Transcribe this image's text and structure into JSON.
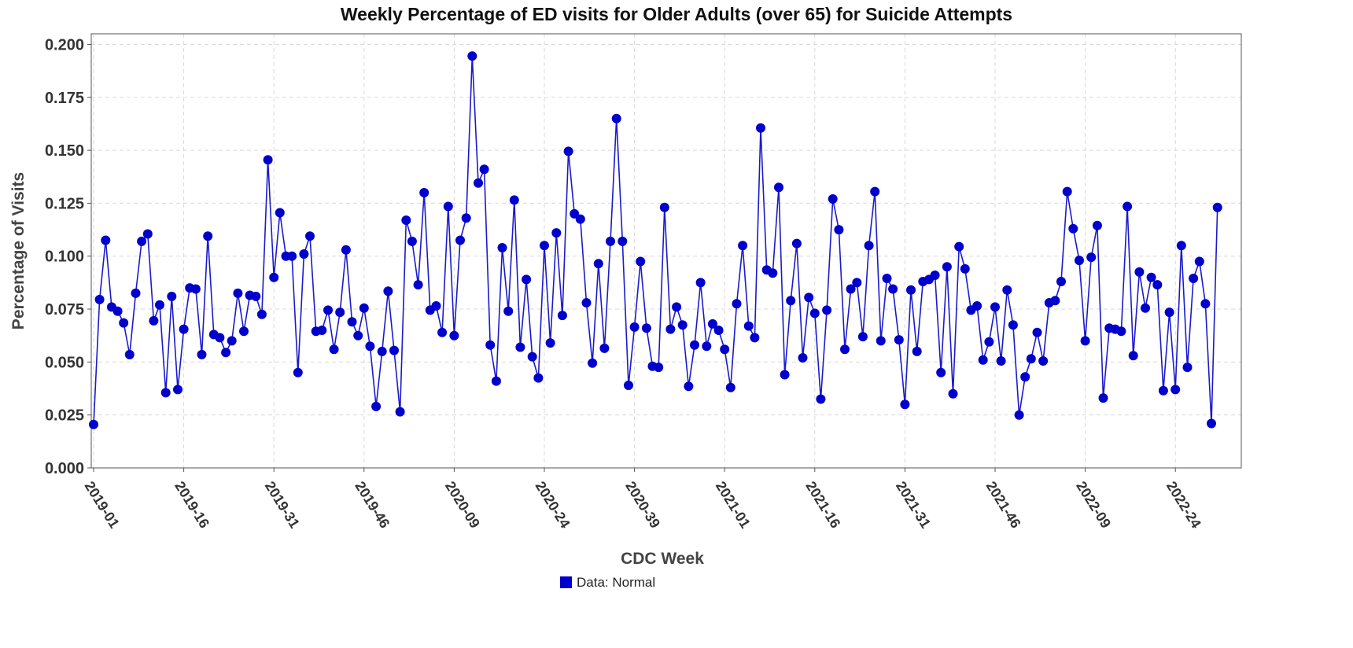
{
  "chart_data": {
    "type": "line",
    "title": "Weekly Percentage of ED visits for Older Adults (over 65) for Suicide Attempts",
    "xlabel": "CDC Week",
    "ylabel": "Percentage of Visits",
    "ylim": [
      0,
      0.205
    ],
    "yticks": [
      "0.000",
      "0.025",
      "0.050",
      "0.075",
      "0.100",
      "0.125",
      "0.150",
      "0.175",
      "0.200"
    ],
    "xtick_labels": [
      "2019-01",
      "2019-16",
      "2019-31",
      "2019-46",
      "2020-09",
      "2020-24",
      "2020-39",
      "2021-01",
      "2021-16",
      "2021-31",
      "2021-46",
      "2022-09",
      "2022-24"
    ],
    "grid": true,
    "legend": {
      "position": "bottom",
      "entries": [
        {
          "label": "Data: Normal",
          "color": "#0000cc"
        }
      ]
    },
    "line_color": "#1a1acc",
    "marker_color": "#0000cc",
    "series": [
      {
        "start_week": "2019-01",
        "values": [
          0.0205,
          0.0795,
          0.1075,
          0.076,
          0.074,
          0.0685,
          0.0535,
          0.0825,
          0.107,
          0.1105,
          0.0695,
          0.077,
          0.0355,
          0.081,
          0.037,
          0.0655,
          0.085,
          0.0845,
          0.0535,
          0.1095,
          0.063,
          0.0615,
          0.0545,
          0.06,
          0.0825,
          0.0645,
          0.0815,
          0.081,
          0.0725,
          0.1455,
          0.09,
          0.1205,
          0.1,
          0.1,
          0.045,
          0.101,
          0.1095,
          0.0645,
          0.065,
          0.0745,
          0.056,
          0.0735,
          0.103,
          0.069,
          0.0625,
          0.0755,
          0.0575,
          0.029,
          0.055,
          0.0835,
          0.0555,
          0.0265,
          0.117,
          0.107,
          0.0865,
          0.13,
          0.0745,
          0.0765,
          0.064,
          0.1235,
          0.0625,
          0.1075,
          0.118,
          0.1945,
          0.1345,
          0.141,
          0.058,
          0.041,
          0.104,
          0.074,
          0.1265,
          0.057,
          0.089,
          0.0525,
          0.0425,
          0.105,
          0.059,
          0.111,
          0.072,
          0.1495,
          0.12,
          0.1175,
          0.078,
          0.0495,
          0.0965,
          0.0565,
          0.107,
          0.165,
          0.107,
          0.039,
          0.0665,
          0.0975,
          0.066,
          0.048,
          0.0475,
          0.123,
          0.0655,
          0.076,
          0.0675,
          0.0385,
          0.058,
          0.0875,
          0.0575,
          0.068,
          0.065,
          0.056,
          0.038,
          0.0775,
          0.105,
          0.067,
          0.0615,
          0.1605,
          0.0935,
          0.092,
          0.1325,
          0.044,
          0.079,
          0.106,
          0.052,
          0.0805,
          0.073,
          0.0325,
          0.0745,
          0.127,
          0.1125,
          0.056,
          0.0845,
          0.0875,
          0.062,
          0.105,
          0.1305,
          0.06,
          0.0895,
          0.0845,
          0.0605,
          0.03,
          0.084,
          0.055,
          0.088,
          0.089,
          0.091,
          0.045,
          0.095,
          0.035,
          0.1045,
          0.094,
          0.0745,
          0.0765,
          0.051,
          0.0595,
          0.076,
          0.0505,
          0.084,
          0.0675,
          0.025,
          0.043,
          0.0515,
          0.064,
          0.0505,
          0.078,
          0.079,
          0.088,
          0.1305,
          0.113,
          0.098,
          0.06,
          0.0995,
          0.1145,
          0.033,
          0.066,
          0.0655,
          0.0645,
          0.1235,
          0.053,
          0.0925,
          0.0755,
          0.09,
          0.0865,
          0.0365,
          0.0735,
          0.037,
          0.105,
          0.0475,
          0.0895,
          0.0975,
          0.0775,
          0.021,
          0.123
        ]
      }
    ]
  }
}
